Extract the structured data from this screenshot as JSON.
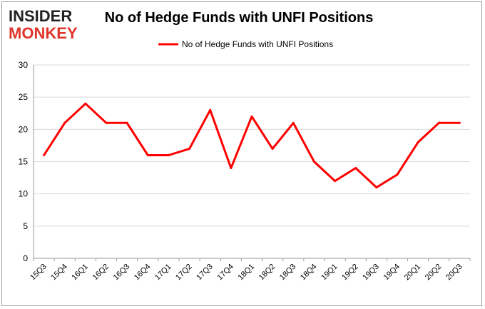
{
  "logo": {
    "line1": "INSIDER",
    "line2": "MONKEY"
  },
  "chart_data": {
    "type": "line",
    "title": "No of Hedge Funds with UNFI Positions",
    "xlabel": "",
    "ylabel": "",
    "categories": [
      "15Q3",
      "15Q4",
      "16Q1",
      "16Q2",
      "16Q3",
      "16Q4",
      "17Q1",
      "17Q2",
      "17Q3",
      "17Q4",
      "18Q1",
      "18Q2",
      "18Q3",
      "18Q4",
      "19Q1",
      "19Q2",
      "19Q3",
      "19Q4",
      "20Q1",
      "20Q2",
      "20Q3"
    ],
    "series": [
      {
        "name": "No of Hedge Funds with UNFI  Positions",
        "values": [
          16,
          21,
          24,
          21,
          21,
          16,
          16,
          17,
          23,
          14,
          22,
          17,
          21,
          15,
          12,
          14,
          11,
          13,
          18,
          21,
          21
        ]
      }
    ],
    "ylim": [
      0,
      30
    ],
    "yticks": [
      0,
      5,
      10,
      15,
      20,
      25,
      30
    ],
    "grid": true,
    "legend": "top-center",
    "colors": {
      "line": "#ff0000",
      "grid": "#d9d9d9",
      "axis": "#999999"
    }
  }
}
